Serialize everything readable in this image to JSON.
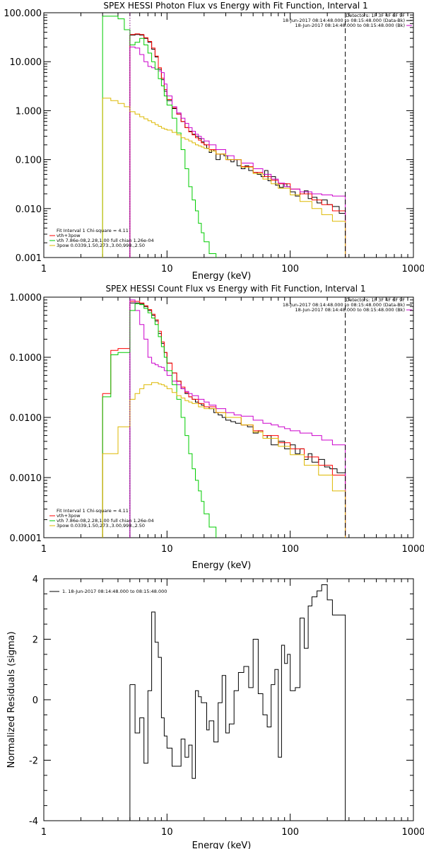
{
  "chart_data": [
    {
      "id": "photon",
      "type": "line",
      "title": "SPEX HESSI Photon Flux vs Energy with Fit Function, Interval 1",
      "xlabel": "Energy (keV)",
      "ylabel": "",
      "xscale": "log",
      "yscale": "log",
      "xlim": [
        1,
        1000
      ],
      "ylim": [
        0.001,
        100
      ],
      "x_ticks": [
        "1",
        "10",
        "100",
        "1000"
      ],
      "y_ticks": [
        "0.001",
        "0.010",
        "0.100",
        "1.000",
        "10.000",
        "100.000"
      ],
      "vlines": [
        {
          "x": 5,
          "color": "#800080",
          "style": "dotted"
        },
        {
          "x": 280,
          "color": "#000000",
          "style": "dashed"
        }
      ],
      "header_lines": [
        "Detectors: 1F 3F 4F 6F 9F",
        "18-Jun-2017 08:14:48.000 to 08:15:48.000 (Data-Bk)",
        "18-Jun-2017 08:14:48.000 to 08:15:48.000 (Bk)"
      ],
      "header_colors": [
        "",
        "#000000",
        "#cc00cc"
      ],
      "legend_lines": [
        "Fit Interval 1   Chi-square = 4.11",
        "vth+3pow",
        "vth 7.86e-08,2.28,1.00  full chian 1.26e-04",
        "3pow 0.0339,1.50,273.,3.00,998.,2.50"
      ],
      "legend_colors": [
        "",
        "#ff0000",
        "#00cc00",
        "#ddb800"
      ],
      "series": [
        {
          "color": "#000000",
          "x": [
            5,
            5.5,
            6,
            6.5,
            7,
            7.5,
            8,
            8.5,
            9,
            9.5,
            10,
            11,
            12,
            13,
            14,
            15,
            16,
            17,
            18,
            19,
            20,
            21,
            22,
            23,
            24,
            25,
            27,
            29,
            31,
            33,
            35,
            37,
            40,
            43,
            46,
            50,
            54,
            58,
            62,
            66,
            70,
            76,
            82,
            88,
            94,
            100,
            110,
            120,
            130,
            140,
            150,
            165,
            180,
            200,
            220,
            250,
            280
          ],
          "y": [
            35,
            36,
            35,
            30,
            25,
            18,
            12.5,
            7,
            4.3,
            2.5,
            1.6,
            1.1,
            0.85,
            0.6,
            0.45,
            0.38,
            0.33,
            0.3,
            0.27,
            0.23,
            0.2,
            0.17,
            0.14,
            0.16,
            0.15,
            0.1,
            0.13,
            0.12,
            0.1,
            0.09,
            0.1,
            0.075,
            0.065,
            0.075,
            0.06,
            0.055,
            0.05,
            0.045,
            0.06,
            0.037,
            0.045,
            0.03,
            0.027,
            0.032,
            0.028,
            0.022,
            0.018,
            0.02,
            0.023,
            0.016,
            0.017,
            0.013,
            0.015,
            0.012,
            0.011,
            0.008,
            0.005
          ]
        },
        {
          "color": "#ff0000",
          "x": [
            5,
            5.5,
            6,
            6.5,
            7,
            7.5,
            8,
            8.5,
            9,
            9.5,
            10,
            11,
            12,
            13,
            14,
            15,
            16,
            17,
            18,
            19,
            20,
            22,
            25,
            30,
            40,
            50,
            60,
            70,
            80,
            100,
            120,
            150,
            180,
            220,
            280
          ],
          "y": [
            36,
            37,
            36,
            31,
            26,
            19,
            13,
            7.5,
            4.6,
            2.7,
            1.7,
            1.15,
            0.85,
            0.6,
            0.45,
            0.37,
            0.32,
            0.28,
            0.25,
            0.22,
            0.2,
            0.16,
            0.13,
            0.1,
            0.072,
            0.055,
            0.045,
            0.038,
            0.032,
            0.025,
            0.02,
            0.015,
            0.012,
            0.009,
            0.0065
          ]
        },
        {
          "color": "#cc00cc",
          "x": [
            5,
            5.5,
            6,
            6.5,
            7,
            7.5,
            8,
            8.5,
            9,
            9.5,
            10,
            11,
            12,
            13,
            14,
            15,
            16,
            17,
            18,
            19,
            20,
            22,
            25,
            30,
            35,
            40,
            50,
            60,
            70,
            80,
            90,
            100,
            120,
            150,
            180,
            220,
            280
          ],
          "y": [
            20,
            19,
            14,
            10,
            8,
            7.5,
            7,
            6.5,
            6,
            3.5,
            2,
            1.2,
            0.9,
            0.7,
            0.55,
            0.45,
            0.38,
            0.33,
            0.3,
            0.27,
            0.24,
            0.2,
            0.16,
            0.12,
            0.1,
            0.085,
            0.065,
            0.05,
            0.04,
            0.033,
            0.028,
            0.025,
            0.022,
            0.02,
            0.019,
            0.018,
            0.016
          ]
        },
        {
          "color": "#00cc00",
          "x": [
            3,
            3.5,
            4,
            4.5,
            5,
            5.5,
            6,
            6.5,
            7,
            7.5,
            8,
            8.5,
            9,
            9.5,
            10,
            11,
            12,
            13,
            14,
            15,
            16,
            17,
            18,
            19,
            20,
            22,
            25
          ],
          "y": [
            85,
            85,
            75,
            45,
            22,
            25,
            30,
            22,
            15,
            10,
            7,
            4.5,
            3.2,
            2,
            1.3,
            0.7,
            0.35,
            0.16,
            0.065,
            0.028,
            0.015,
            0.009,
            0.005,
            0.0032,
            0.0021,
            0.0012,
            0.001
          ]
        },
        {
          "color": "#ddb800",
          "x": [
            3,
            3.5,
            4,
            4.5,
            5,
            5.5,
            6,
            6.5,
            7,
            7.5,
            8,
            8.5,
            9,
            9.5,
            10,
            11,
            12,
            13,
            14,
            15,
            16,
            17,
            18,
            19,
            20,
            22,
            25,
            30,
            40,
            50,
            60,
            70,
            80,
            100,
            120,
            150,
            180,
            220,
            280
          ],
          "y": [
            1.8,
            1.6,
            1.4,
            1.2,
            0.95,
            0.85,
            0.75,
            0.68,
            0.62,
            0.57,
            0.52,
            0.48,
            0.44,
            0.42,
            0.4,
            0.36,
            0.32,
            0.28,
            0.26,
            0.24,
            0.22,
            0.2,
            0.19,
            0.18,
            0.17,
            0.15,
            0.13,
            0.1,
            0.07,
            0.052,
            0.04,
            0.032,
            0.026,
            0.019,
            0.014,
            0.01,
            0.0075,
            0.0055,
            0.0035
          ]
        }
      ]
    },
    {
      "id": "count",
      "type": "line",
      "title": "SPEX HESSI Count Flux vs Energy with Fit Function, Interval 1",
      "xlabel": "Energy (keV)",
      "ylabel": "",
      "xscale": "log",
      "yscale": "log",
      "xlim": [
        1,
        1000
      ],
      "ylim": [
        0.0001,
        1
      ],
      "x_ticks": [
        "1",
        "10",
        "100",
        "1000"
      ],
      "y_ticks": [
        "0.0001",
        "0.0010",
        "0.0100",
        "0.1000",
        "1.0000"
      ],
      "vlines": [
        {
          "x": 5,
          "color": "#800080",
          "style": "dotted"
        },
        {
          "x": 280,
          "color": "#000000",
          "style": "dashed"
        }
      ],
      "header_lines": [
        "Detectors: 1F 3F 4F 6F 9F",
        "18-Jun-2017 08:14:48.000 to 08:15:48.000 (Data-Bk)",
        "18-Jun-2017 08:14:48.000 to 08:15:48.000 (Bk)"
      ],
      "header_colors": [
        "",
        "#000000",
        "#cc00cc"
      ],
      "legend_lines": [
        "Fit Interval 1   Chi-square = 4.11",
        "vth+3pow",
        "vth 7.86e-08,2.28,1.00  full chian 1.26e-04",
        "3pow 0.0339,1.50,273.,3.00,998.,2.50"
      ],
      "legend_colors": [
        "",
        "#ff0000",
        "#00cc00",
        "#ddb800"
      ],
      "series": [
        {
          "color": "#000000",
          "x": [
            5,
            5.5,
            6,
            6.5,
            7,
            7.5,
            8,
            8.5,
            9,
            9.5,
            10,
            11,
            12,
            13,
            14,
            15,
            16,
            17,
            18,
            19,
            20,
            22,
            24,
            26,
            28,
            30,
            33,
            36,
            40,
            45,
            50,
            55,
            60,
            65,
            70,
            80,
            90,
            100,
            110,
            120,
            130,
            140,
            150,
            170,
            190,
            210,
            240,
            280
          ],
          "y": [
            0.8,
            0.8,
            0.78,
            0.7,
            0.6,
            0.5,
            0.4,
            0.25,
            0.17,
            0.12,
            0.08,
            0.055,
            0.04,
            0.03,
            0.025,
            0.022,
            0.02,
            0.018,
            0.017,
            0.016,
            0.015,
            0.014,
            0.012,
            0.011,
            0.01,
            0.009,
            0.0085,
            0.008,
            0.0075,
            0.007,
            0.0055,
            0.006,
            0.0045,
            0.005,
            0.0035,
            0.004,
            0.003,
            0.0035,
            0.0025,
            0.003,
            0.002,
            0.0025,
            0.0018,
            0.002,
            0.0015,
            0.0014,
            0.0012,
            0.0008
          ]
        },
        {
          "color": "#ff0000",
          "x": [
            3,
            3.5,
            4,
            4.5,
            5,
            5.5,
            6,
            6.5,
            7,
            7.5,
            8,
            8.5,
            9,
            9.5,
            10,
            11,
            12,
            13,
            14,
            15,
            16,
            18,
            20,
            25,
            30,
            40,
            50,
            60,
            80,
            100,
            130,
            170,
            220,
            280
          ],
          "y": [
            0.025,
            0.13,
            0.14,
            0.14,
            0.85,
            0.85,
            0.8,
            0.72,
            0.62,
            0.52,
            0.42,
            0.27,
            0.18,
            0.12,
            0.08,
            0.055,
            0.04,
            0.032,
            0.026,
            0.022,
            0.02,
            0.017,
            0.015,
            0.012,
            0.01,
            0.0075,
            0.006,
            0.005,
            0.0038,
            0.003,
            0.0022,
            0.0016,
            0.0011,
            0.0006
          ]
        },
        {
          "color": "#cc00cc",
          "x": [
            5,
            5.5,
            6,
            6.5,
            7,
            7.5,
            8,
            8.5,
            9,
            9.5,
            10,
            11,
            12,
            13,
            14,
            15,
            16,
            18,
            20,
            22,
            25,
            30,
            35,
            40,
            50,
            60,
            70,
            80,
            90,
            100,
            120,
            150,
            180,
            220,
            280
          ],
          "y": [
            0.9,
            0.6,
            0.35,
            0.2,
            0.1,
            0.08,
            0.075,
            0.07,
            0.068,
            0.06,
            0.05,
            0.04,
            0.035,
            0.03,
            0.027,
            0.025,
            0.023,
            0.02,
            0.018,
            0.016,
            0.014,
            0.012,
            0.011,
            0.0105,
            0.009,
            0.008,
            0.0075,
            0.007,
            0.0065,
            0.006,
            0.0055,
            0.005,
            0.0042,
            0.0035,
            0.0025
          ]
        },
        {
          "color": "#00cc00",
          "x": [
            3,
            3.5,
            4,
            4.5,
            5,
            5.5,
            6,
            6.5,
            7,
            7.5,
            8,
            8.5,
            9,
            9.5,
            10,
            11,
            12,
            13,
            14,
            15,
            16,
            17,
            18,
            19,
            20,
            22,
            25
          ],
          "y": [
            0.022,
            0.11,
            0.12,
            0.12,
            0.6,
            0.78,
            0.75,
            0.65,
            0.55,
            0.45,
            0.35,
            0.22,
            0.15,
            0.1,
            0.06,
            0.035,
            0.02,
            0.01,
            0.005,
            0.0025,
            0.0014,
            0.0009,
            0.0006,
            0.0004,
            0.00025,
            0.00015,
            0.0001
          ]
        },
        {
          "color": "#ddb800",
          "x": [
            3,
            3.5,
            4,
            4.5,
            5,
            5.5,
            6,
            6.5,
            7,
            7.5,
            8,
            8.5,
            9,
            9.5,
            10,
            11,
            12,
            13,
            14,
            15,
            16,
            18,
            20,
            25,
            30,
            40,
            50,
            60,
            80,
            100,
            130,
            170,
            220,
            280
          ],
          "y": [
            0.0025,
            0.0025,
            0.007,
            0.007,
            0.02,
            0.025,
            0.03,
            0.035,
            0.035,
            0.038,
            0.038,
            0.036,
            0.035,
            0.033,
            0.03,
            0.026,
            0.023,
            0.021,
            0.019,
            0.018,
            0.017,
            0.015,
            0.014,
            0.012,
            0.01,
            0.0075,
            0.0057,
            0.0045,
            0.0033,
            0.0024,
            0.0016,
            0.0011,
            0.0006,
            0.00035
          ]
        }
      ]
    },
    {
      "id": "residuals",
      "type": "line",
      "title": "",
      "xlabel": "Energy (keV)",
      "ylabel": "Normalized Residuals (sigma)",
      "xscale": "log",
      "yscale": "linear",
      "xlim": [
        1,
        1000
      ],
      "ylim": [
        -4,
        4
      ],
      "x_ticks": [
        "1",
        "10",
        "100",
        "1000"
      ],
      "y_ticks": [
        "-4",
        "-2",
        "0",
        "2",
        "4"
      ],
      "legend_lines": [
        "1. 18-Jun-2017 08:14:48.000 to 08:15:48.000"
      ],
      "series": [
        {
          "color": "#000000",
          "x": [
            5,
            5.5,
            6,
            6.5,
            7,
            7.5,
            8,
            8.5,
            9,
            9.5,
            10,
            11,
            12,
            13,
            14,
            15,
            16,
            17,
            18,
            19,
            20,
            21,
            22,
            24,
            26,
            28,
            30,
            32,
            35,
            38,
            42,
            46,
            50,
            55,
            60,
            65,
            70,
            75,
            80,
            85,
            90,
            95,
            100,
            110,
            120,
            130,
            140,
            150,
            165,
            180,
            200,
            220,
            250,
            280
          ],
          "y": [
            0.5,
            -1.1,
            -0.6,
            -2.1,
            0.3,
            2.9,
            1.9,
            1.4,
            -0.6,
            -1.2,
            -1.6,
            -2.2,
            -2.2,
            -1.3,
            -1.9,
            -1.5,
            -2.6,
            0.3,
            0.1,
            -0.1,
            -0.1,
            -1.0,
            -0.7,
            -1.4,
            -0.1,
            0.8,
            -1.1,
            -0.8,
            0.3,
            0.9,
            1.1,
            0.4,
            2.0,
            0.2,
            -0.5,
            -0.9,
            0.5,
            1.0,
            -1.9,
            1.8,
            1.2,
            1.5,
            0.3,
            0.4,
            2.7,
            1.7,
            3.1,
            3.4,
            3.6,
            3.8,
            3.3,
            2.8,
            2.8,
            2.8
          ]
        }
      ]
    }
  ]
}
